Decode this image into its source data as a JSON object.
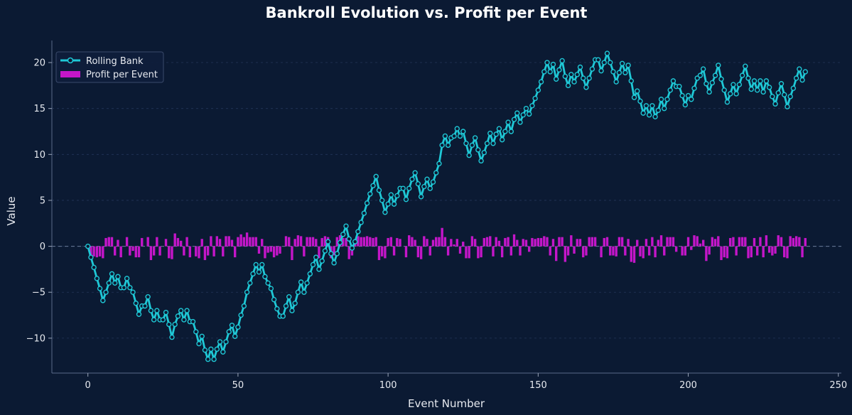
{
  "chart_data": {
    "type": "line",
    "title": "Bankroll Evolution vs. Profit per Event",
    "xlabel": "Event Number",
    "ylabel": "Value",
    "xlim": [
      -12,
      251
    ],
    "ylim": [
      -13.8,
      22.4
    ],
    "xticks": [
      0,
      50,
      100,
      150,
      200,
      250
    ],
    "yticks": [
      -10,
      -5,
      0,
      5,
      10,
      15,
      20
    ],
    "grid": "horizontal-dashed",
    "legend_position": "top-left",
    "colors": {
      "background": "#0b1a33",
      "bank_line": "#1fc8d6",
      "bank_marker_fill": "#0b1a33",
      "profit_bar": "#c416c9",
      "grid": "#23355a",
      "zero_line": "#6b7c99"
    },
    "series": [
      {
        "name": "Rolling Bank",
        "kind": "line",
        "x_start": 0,
        "values": [
          0,
          -1.2,
          -2.3,
          -3.5,
          -4.6,
          -5.9,
          -5.0,
          -4.0,
          -3.0,
          -4.0,
          -3.3,
          -4.5,
          -4.5,
          -3.5,
          -4.5,
          -5.0,
          -6.2,
          -7.4,
          -6.5,
          -6.5,
          -5.5,
          -7.0,
          -8.0,
          -7.0,
          -8.0,
          -8.0,
          -7.2,
          -8.5,
          -9.9,
          -8.5,
          -7.6,
          -7.0,
          -8.0,
          -7.0,
          -8.2,
          -8.2,
          -9.3,
          -10.6,
          -9.8,
          -11.3,
          -12.3,
          -11.2,
          -12.3,
          -11.2,
          -10.4,
          -11.5,
          -10.4,
          -9.3,
          -8.6,
          -9.8,
          -8.8,
          -7.5,
          -6.5,
          -5.0,
          -4.0,
          -3.0,
          -2.0,
          -2.8,
          -2.0,
          -3.3,
          -4.0,
          -4.6,
          -5.8,
          -6.8,
          -7.6,
          -7.6,
          -6.5,
          -5.5,
          -7.0,
          -6.2,
          -5.0,
          -3.9,
          -5.0,
          -4.0,
          -3.0,
          -2.0,
          -1.2,
          -2.5,
          -1.6,
          -0.5,
          0.5,
          -0.8,
          -1.8,
          -0.8,
          0.4,
          1.3,
          2.2,
          0.8,
          -0.2,
          0.5,
          1.6,
          2.6,
          3.6,
          4.7,
          5.7,
          6.6,
          7.6,
          6.1,
          5.0,
          3.7,
          4.6,
          5.6,
          4.6,
          5.5,
          6.3,
          6.3,
          5.1,
          6.3,
          7.3,
          8.0,
          6.8,
          5.4,
          6.5,
          7.3,
          6.3,
          7.0,
          8.0,
          9.0,
          11.0,
          12.0,
          11.0,
          11.8,
          12.0,
          12.8,
          12.0,
          12.5,
          11.2,
          9.9,
          11.0,
          11.8,
          10.5,
          9.3,
          10.2,
          11.2,
          12.3,
          11.2,
          12.2,
          12.8,
          11.6,
          12.5,
          13.5,
          12.5,
          13.8,
          14.5,
          13.5,
          14.3,
          15.0,
          14.4,
          15.3,
          16.1,
          17.0,
          17.9,
          19.0,
          20.0,
          19.0,
          19.8,
          18.2,
          19.2,
          20.2,
          18.5,
          17.5,
          18.7,
          17.9,
          18.7,
          19.5,
          18.3,
          17.3,
          18.3,
          19.3,
          20.3,
          20.3,
          19.1,
          20.0,
          21.0,
          20.0,
          19.0,
          17.9,
          18.9,
          19.9,
          18.9,
          19.7,
          18.0,
          16.2,
          16.9,
          15.8,
          14.5,
          15.3,
          14.3,
          15.3,
          14.1,
          14.8,
          16.0,
          15.0,
          16.0,
          17.0,
          18.0,
          17.4,
          17.4,
          16.4,
          15.4,
          16.4,
          16.0,
          17.2,
          18.3,
          18.6,
          19.3,
          17.7,
          16.8,
          17.8,
          18.6,
          19.7,
          18.2,
          17.0,
          15.7,
          16.6,
          17.6,
          16.6,
          17.6,
          18.6,
          19.6,
          18.3,
          17.1,
          18.0,
          17.0,
          18.0,
          16.8,
          18.0,
          17.3,
          16.3,
          15.5,
          16.7,
          17.7,
          16.5,
          15.2,
          16.3,
          17.2,
          18.3,
          19.3,
          18.1,
          19.0
        ]
      },
      {
        "name": "Profit per Event",
        "kind": "bar",
        "x_start": 1,
        "values": [
          -1.2,
          -1.1,
          -1.2,
          -1.1,
          -1.3,
          0.9,
          1.0,
          1.0,
          -1.0,
          0.7,
          -1.2,
          0,
          1.0,
          -1.0,
          -0.5,
          -1.2,
          -1.2,
          0.9,
          0,
          1.0,
          -1.5,
          -1.0,
          1.0,
          -1.0,
          0,
          0.8,
          -1.3,
          -1.4,
          1.4,
          0.9,
          0.6,
          -1.0,
          1.0,
          -1.2,
          0,
          -1.1,
          -1.3,
          0.8,
          -1.5,
          -1.0,
          1.1,
          -1.1,
          1.1,
          0.8,
          -1.1,
          1.1,
          1.1,
          0.7,
          -1.2,
          1.0,
          1.3,
          1.0,
          1.5,
          1.0,
          1.0,
          1.0,
          -0.8,
          0.8,
          -1.3,
          -0.7,
          -0.6,
          -1.2,
          -1.0,
          -0.8,
          0,
          1.1,
          1.0,
          -1.5,
          0.8,
          1.2,
          1.1,
          -1.1,
          1.0,
          1.0,
          1.0,
          0.8,
          -1.3,
          0.9,
          1.1,
          1.0,
          -1.3,
          -1.0,
          1.0,
          1.2,
          0.9,
          0.9,
          -1.4,
          -1.0,
          0.7,
          1.1,
          1.0,
          1.0,
          1.1,
          1.0,
          0.9,
          1.0,
          -1.5,
          -1.1,
          -1.3,
          0.9,
          1.0,
          -1.0,
          0.9,
          0.8,
          0,
          -1.2,
          1.2,
          1.0,
          0.7,
          -1.2,
          -1.4,
          1.1,
          0.8,
          -1.0,
          0.7,
          1.0,
          1.0,
          2.0,
          1.0,
          -1.0,
          0.8,
          0.2,
          0.8,
          -0.8,
          0.5,
          -1.3,
          -1.3,
          1.1,
          0.8,
          -1.3,
          -1.2,
          0.9,
          1.0,
          1.1,
          -1.1,
          1.0,
          0.6,
          -1.2,
          0.9,
          1.0,
          -1.0,
          1.3,
          0.7,
          -1.0,
          0.8,
          0.7,
          -0.6,
          0.9,
          0.8,
          0.9,
          0.9,
          1.1,
          1.0,
          -1.0,
          0.8,
          -1.6,
          1.0,
          1.0,
          -1.7,
          -1.0,
          1.2,
          -0.8,
          0.8,
          0.8,
          -1.2,
          -1.0,
          1.0,
          1.0,
          1.0,
          0,
          -1.2,
          0.9,
          1.0,
          -1.0,
          -1.0,
          -1.1,
          1.0,
          1.0,
          -1.0,
          0.8,
          -1.7,
          -1.8,
          0.7,
          -1.1,
          -1.3,
          0.8,
          -1.0,
          1.0,
          -1.2,
          0.7,
          1.2,
          -1.0,
          1.0,
          1.0,
          1.0,
          -0.6,
          0,
          -1.0,
          -1.0,
          1.0,
          -0.4,
          1.2,
          1.1,
          0.3,
          0.7,
          -1.6,
          -0.9,
          1.0,
          0.8,
          1.1,
          -1.5,
          -1.2,
          -1.3,
          0.9,
          1.0,
          -1.0,
          1.0,
          1.0,
          1.0,
          -1.3,
          -1.2,
          0.9,
          -1.0,
          1.0,
          -1.2,
          1.2,
          -0.7,
          -1.0,
          -0.8,
          1.2,
          1.0,
          -1.2,
          -1.3,
          1.1,
          0.9,
          1.1,
          1.0,
          -1.2,
          0.9
        ]
      }
    ]
  }
}
